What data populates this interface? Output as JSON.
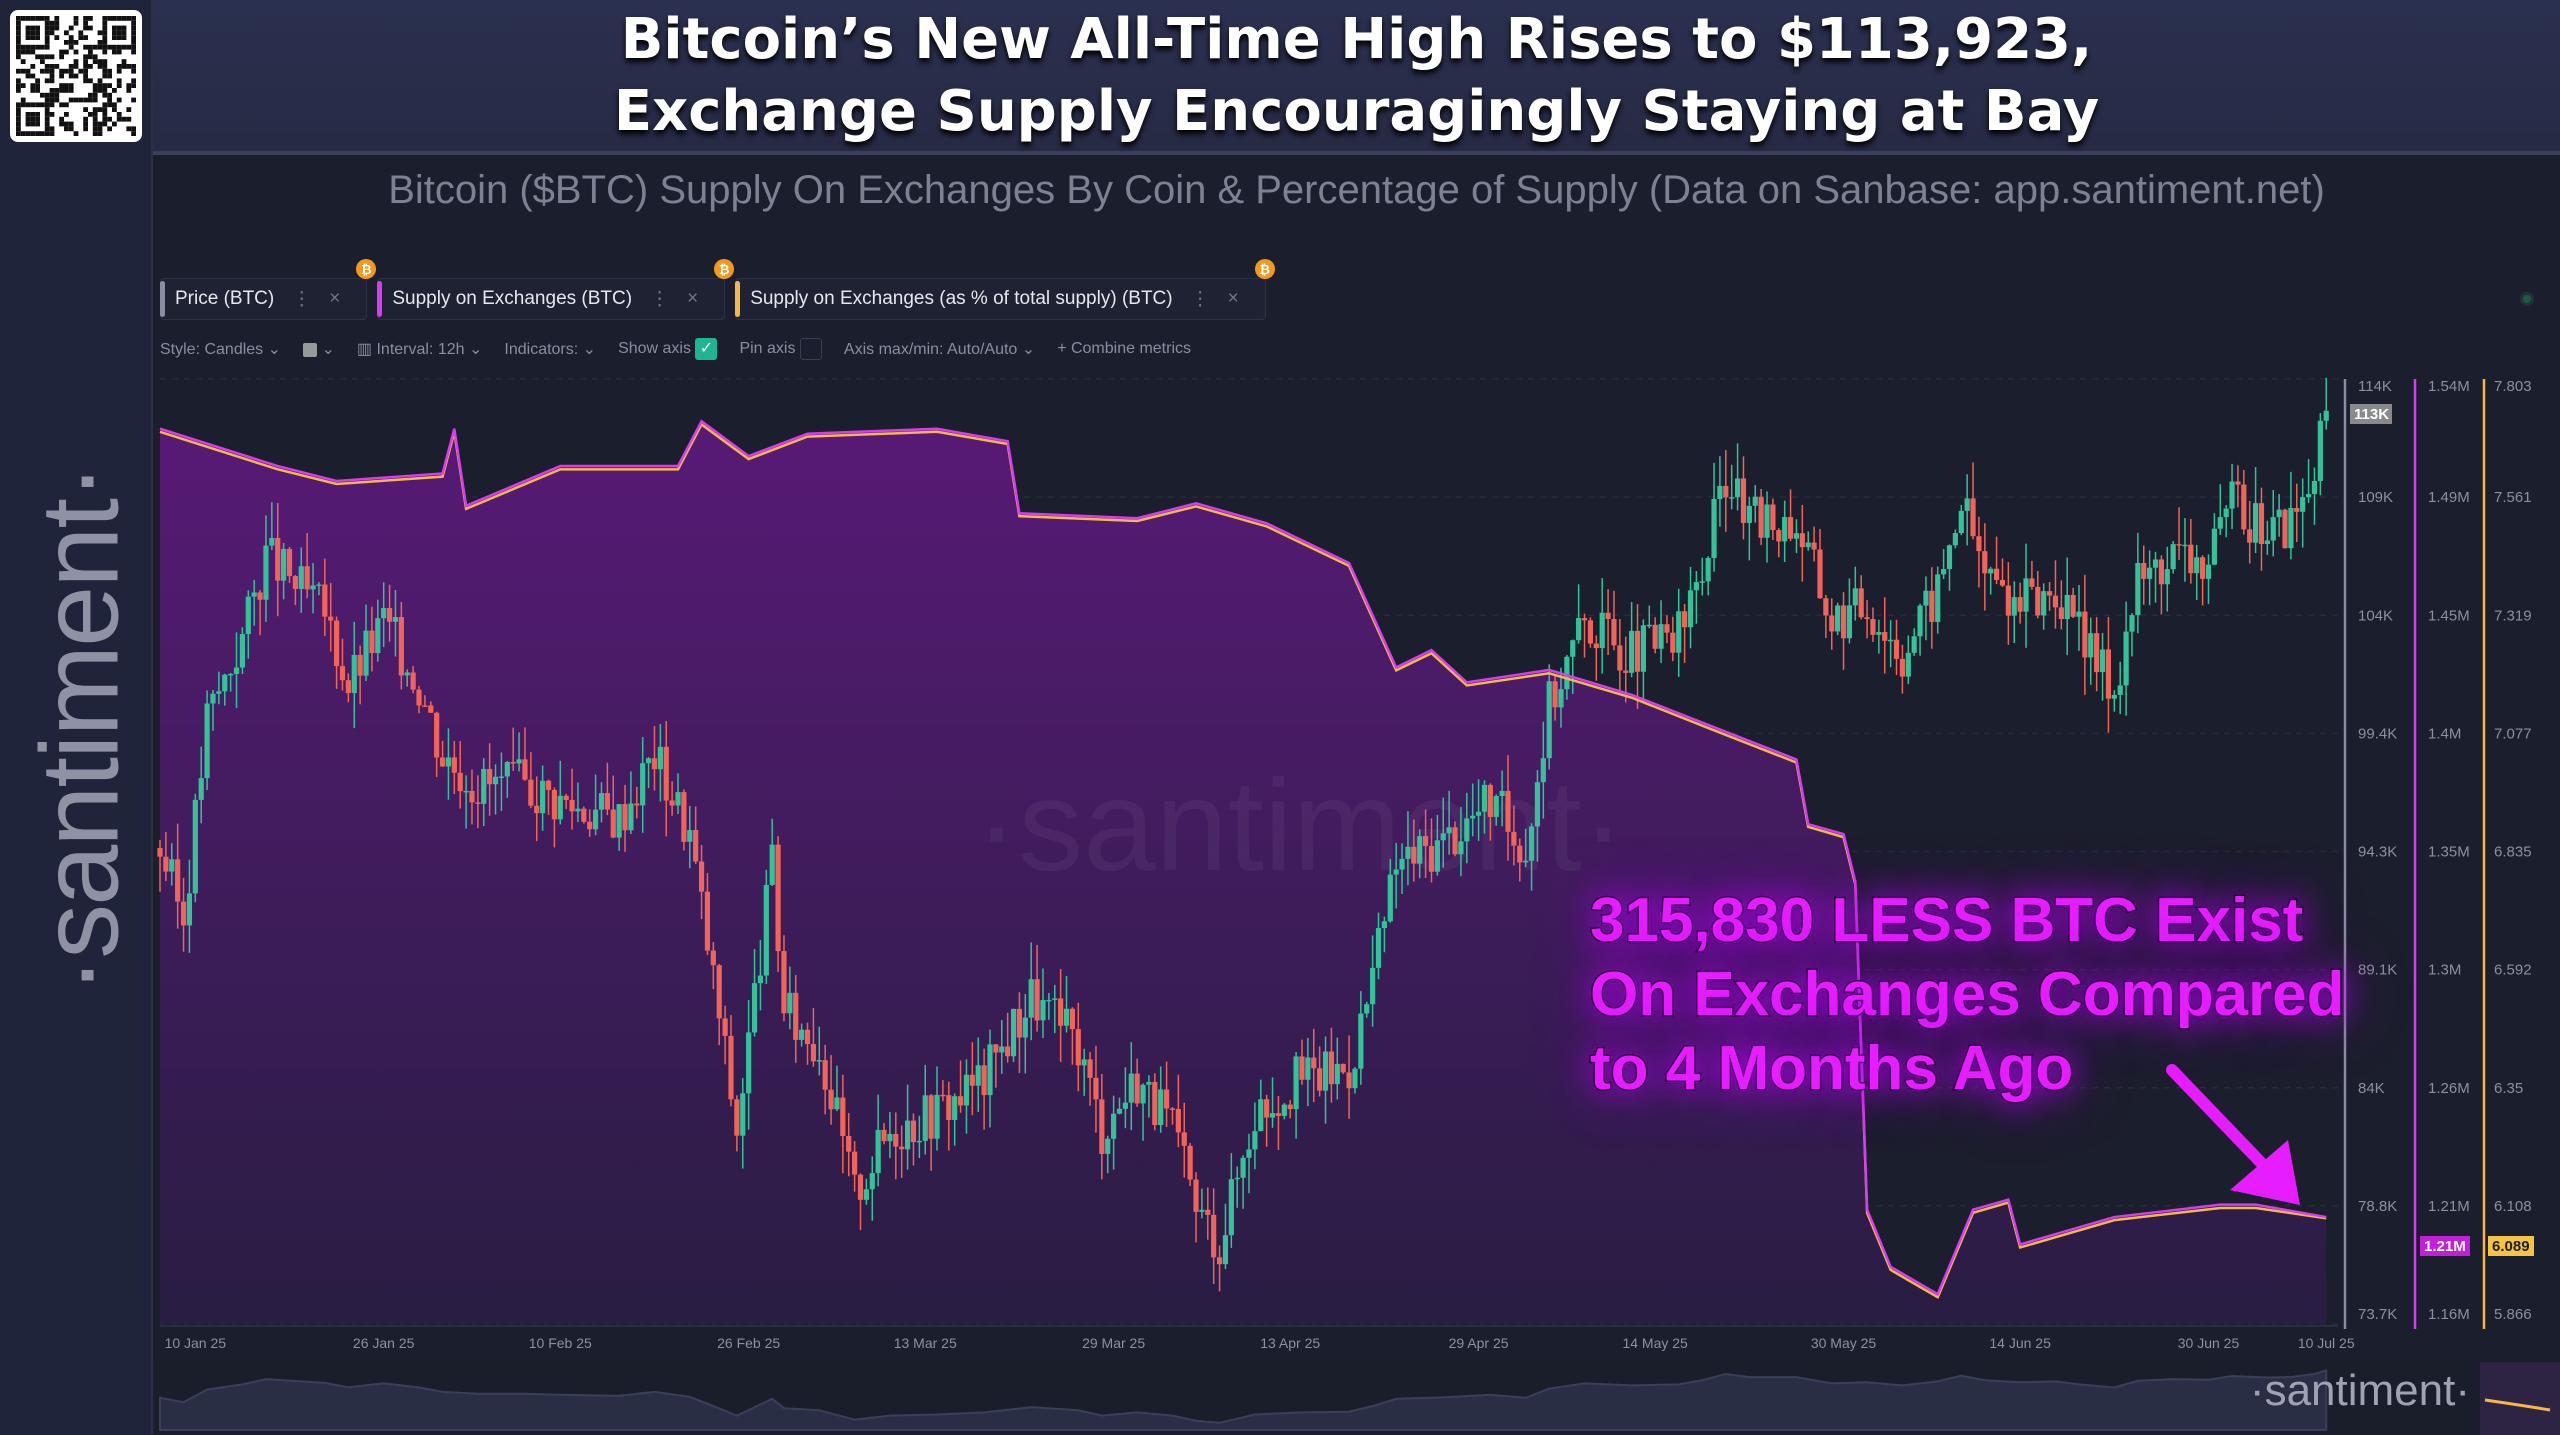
{
  "header": {
    "title_line1": "Bitcoin’s New All-Time High Rises to $113,923,",
    "title_line2": "Exchange Supply Encouragingly Staying at Bay",
    "subtitle": "Bitcoin ($BTC) Supply On Exchanges By Coin & Percentage of Supply (Data on Sanbase: app.santiment.net)"
  },
  "brand": {
    "side_logo": "·santiment·",
    "watermark": "·santiment·",
    "nav_logo": "·santiment·"
  },
  "tabs": [
    {
      "label": "Price (BTC)",
      "color": "#8a8ea2"
    },
    {
      "label": "Supply on Exchanges (BTC)",
      "color": "#d63df0"
    },
    {
      "label": "Supply on Exchanges (as % of total supply) (BTC)",
      "color": "#f5b74a"
    }
  ],
  "tab_badge": "₿",
  "tab_menu": "⋮",
  "tab_close": "×",
  "toolbar": {
    "style": "Style: Candles",
    "interval": "Interval: 12h",
    "indicators": "Indicators:",
    "show_axis": "Show axis",
    "show_axis_checked": true,
    "pin_axis": "Pin axis",
    "pin_axis_checked": false,
    "axis_minmax": "Axis max/min: Auto/Auto",
    "combine": "+ Combine metrics",
    "chevron": "⌄",
    "check": "✓"
  },
  "annotation": {
    "text": "315,830 LESS BTC Exist\nOn Exchanges Compared\nto 4 Months Ago",
    "color": "#e51dff"
  },
  "chart_data": {
    "type": "candlestick+area+line",
    "x_ticks": [
      "10 Jan 25",
      "26 Jan 25",
      "10 Feb 25",
      "26 Feb 25",
      "13 Mar 25",
      "29 Mar 25",
      "13 Apr 25",
      "29 Apr 25",
      "14 May 25",
      "30 May 25",
      "14 Jun 25",
      "30 Jun 25",
      "10 Jul 25"
    ],
    "x_tick_dates": [
      "2025-01-10",
      "2025-01-26",
      "2025-02-10",
      "2025-02-26",
      "2025-03-13",
      "2025-03-29",
      "2025-04-13",
      "2025-04-29",
      "2025-05-14",
      "2025-05-30",
      "2025-06-14",
      "2025-06-30",
      "2025-07-10"
    ],
    "x_range": [
      "2025-01-07",
      "2025-07-11"
    ],
    "axes": [
      {
        "name": "Price (BTC)",
        "color": "#8a8ea2",
        "ticks": [
          "114K",
          "109K",
          "104K",
          "99.4K",
          "94.3K",
          "89.1K",
          "84K",
          "78.8K",
          "73.7K"
        ],
        "range": [
          73.7,
          114
        ],
        "current": "113K"
      },
      {
        "name": "Supply on Exchanges (BTC)",
        "color": "#d63df0",
        "ticks": [
          "1.54M",
          "1.49M",
          "1.45M",
          "1.4M",
          "1.35M",
          "1.3M",
          "1.26M",
          "1.21M",
          "1.16M"
        ],
        "range": [
          1.16,
          1.54
        ],
        "current": "1.21M"
      },
      {
        "name": "Supply on Exchanges (%)",
        "color": "#f5b74a",
        "ticks": [
          "7.803",
          "7.561",
          "7.319",
          "7.077",
          "6.835",
          "6.592",
          "6.35",
          "6.108",
          "5.866"
        ],
        "range": [
          5.866,
          7.803
        ],
        "current": "6.089"
      }
    ],
    "price_close_k": [
      [
        "2025-01-07",
        94.0
      ],
      [
        "2025-01-09",
        91.0
      ],
      [
        "2025-01-11",
        99.5
      ],
      [
        "2025-01-14",
        103
      ],
      [
        "2025-01-16",
        106.5
      ],
      [
        "2025-01-19",
        105
      ],
      [
        "2025-01-21",
        104
      ],
      [
        "2025-01-23",
        101
      ],
      [
        "2025-01-26",
        103.7
      ],
      [
        "2025-01-29",
        101
      ],
      [
        "2025-01-31",
        98
      ],
      [
        "2025-02-03",
        96.7
      ],
      [
        "2025-02-07",
        96.7
      ],
      [
        "2025-02-10",
        96
      ],
      [
        "2025-02-15",
        95.3
      ],
      [
        "2025-02-18",
        98
      ],
      [
        "2025-02-21",
        94.6
      ],
      [
        "2025-02-23",
        88.4
      ],
      [
        "2025-02-25",
        82
      ],
      [
        "2025-02-28",
        93.3
      ],
      [
        "2025-03-01",
        87
      ],
      [
        "2025-03-04",
        85.6
      ],
      [
        "2025-03-07",
        79.3
      ],
      [
        "2025-03-10",
        82
      ],
      [
        "2025-03-14",
        82.8
      ],
      [
        "2025-03-18",
        84.2
      ],
      [
        "2025-03-22",
        87.7
      ],
      [
        "2025-03-26",
        85.6
      ],
      [
        "2025-03-28",
        82
      ],
      [
        "2025-03-31",
        84.2
      ],
      [
        "2025-04-03",
        82
      ],
      [
        "2025-04-05",
        78.6
      ],
      [
        "2025-04-07",
        77.2
      ],
      [
        "2025-04-10",
        82.8
      ],
      [
        "2025-04-14",
        84.2
      ],
      [
        "2025-04-18",
        84.6
      ],
      [
        "2025-04-20",
        88.4
      ],
      [
        "2025-04-22",
        93.3
      ],
      [
        "2025-04-26",
        94.3
      ],
      [
        "2025-04-30",
        96
      ],
      [
        "2025-05-03",
        94
      ],
      [
        "2025-05-05",
        100.2
      ],
      [
        "2025-05-08",
        103.7
      ],
      [
        "2025-05-12",
        102.3
      ],
      [
        "2025-05-16",
        103
      ],
      [
        "2025-05-18",
        105.8
      ],
      [
        "2025-05-20",
        110
      ],
      [
        "2025-05-22",
        107.9
      ],
      [
        "2025-05-26",
        107.9
      ],
      [
        "2025-05-29",
        103.7
      ],
      [
        "2025-06-01",
        104.4
      ],
      [
        "2025-06-04",
        102.3
      ],
      [
        "2025-06-07",
        105
      ],
      [
        "2025-06-09",
        108.9
      ],
      [
        "2025-06-11",
        105.8
      ],
      [
        "2025-06-14",
        104.4
      ],
      [
        "2025-06-17",
        105
      ],
      [
        "2025-06-19",
        103
      ],
      [
        "2025-06-22",
        100.9
      ],
      [
        "2025-06-24",
        105.4
      ],
      [
        "2025-06-27",
        106.5
      ],
      [
        "2025-06-30",
        106.1
      ],
      [
        "2025-07-02",
        108.6
      ],
      [
        "2025-07-05",
        107.6
      ],
      [
        "2025-07-07",
        107.9
      ],
      [
        "2025-07-09",
        110
      ],
      [
        "2025-07-10",
        112.4
      ]
    ],
    "supply_m": [
      [
        "2025-01-07",
        1.52
      ],
      [
        "2025-01-17",
        1.505
      ],
      [
        "2025-01-22",
        1.499
      ],
      [
        "2025-01-31",
        1.502
      ],
      [
        "2025-02-01",
        1.52
      ],
      [
        "2025-02-02",
        1.489
      ],
      [
        "2025-02-10",
        1.505
      ],
      [
        "2025-02-20",
        1.505
      ],
      [
        "2025-02-22",
        1.523
      ],
      [
        "2025-02-26",
        1.509
      ],
      [
        "2025-03-03",
        1.518
      ],
      [
        "2025-03-14",
        1.52
      ],
      [
        "2025-03-20",
        1.515
      ],
      [
        "2025-03-21",
        1.486
      ],
      [
        "2025-03-31",
        1.484
      ],
      [
        "2025-04-05",
        1.49
      ],
      [
        "2025-04-11",
        1.482
      ],
      [
        "2025-04-18",
        1.466
      ],
      [
        "2025-04-22",
        1.424
      ],
      [
        "2025-04-25",
        1.431
      ],
      [
        "2025-04-28",
        1.418
      ],
      [
        "2025-05-05",
        1.423
      ],
      [
        "2025-05-12",
        1.413
      ],
      [
        "2025-05-19",
        1.4
      ],
      [
        "2025-05-26",
        1.387
      ],
      [
        "2025-05-27",
        1.361
      ],
      [
        "2025-05-30",
        1.357
      ],
      [
        "2025-05-31",
        1.338
      ],
      [
        "2025-06-01",
        1.206
      ],
      [
        "2025-06-03",
        1.183
      ],
      [
        "2025-06-07",
        1.172
      ],
      [
        "2025-06-10",
        1.206
      ],
      [
        "2025-06-13",
        1.21
      ],
      [
        "2025-06-14",
        1.192
      ],
      [
        "2025-06-22",
        1.203
      ],
      [
        "2025-07-01",
        1.208
      ],
      [
        "2025-07-04",
        1.208
      ],
      [
        "2025-07-10",
        1.203
      ]
    ],
    "supply_pct": [
      [
        "2025-01-07",
        7.701
      ],
      [
        "2025-01-17",
        7.624
      ],
      [
        "2025-01-22",
        7.594
      ],
      [
        "2025-01-31",
        7.609
      ],
      [
        "2025-02-01",
        7.701
      ],
      [
        "2025-02-02",
        7.543
      ],
      [
        "2025-02-10",
        7.624
      ],
      [
        "2025-02-20",
        7.624
      ],
      [
        "2025-02-22",
        7.716
      ],
      [
        "2025-02-26",
        7.645
      ],
      [
        "2025-03-03",
        7.691
      ],
      [
        "2025-03-14",
        7.701
      ],
      [
        "2025-03-20",
        7.676
      ],
      [
        "2025-03-21",
        7.528
      ],
      [
        "2025-03-31",
        7.518
      ],
      [
        "2025-04-05",
        7.548
      ],
      [
        "2025-04-11",
        7.507
      ],
      [
        "2025-04-18",
        7.426
      ],
      [
        "2025-04-22",
        7.212
      ],
      [
        "2025-04-25",
        7.247
      ],
      [
        "2025-04-28",
        7.181
      ],
      [
        "2025-05-05",
        7.206
      ],
      [
        "2025-05-12",
        7.156
      ],
      [
        "2025-05-19",
        7.089
      ],
      [
        "2025-05-26",
        7.023
      ],
      [
        "2025-05-27",
        6.891
      ],
      [
        "2025-05-30",
        6.87
      ],
      [
        "2025-05-31",
        6.773
      ],
      [
        "2025-06-01",
        6.1
      ],
      [
        "2025-06-03",
        5.983
      ],
      [
        "2025-06-07",
        5.927
      ],
      [
        "2025-06-10",
        6.1
      ],
      [
        "2025-06-13",
        6.121
      ],
      [
        "2025-06-14",
        6.029
      ],
      [
        "2025-06-22",
        6.085
      ],
      [
        "2025-07-01",
        6.11
      ],
      [
        "2025-07-04",
        6.11
      ],
      [
        "2025-07-10",
        6.089
      ]
    ],
    "colors": {
      "up": "#35c29a",
      "down": "#f0645c",
      "supply": "#d63df0",
      "pct": "#f5b74a",
      "area_top": "#5b1a7a",
      "area_bottom": "#2a1d45"
    },
    "grid": true
  }
}
